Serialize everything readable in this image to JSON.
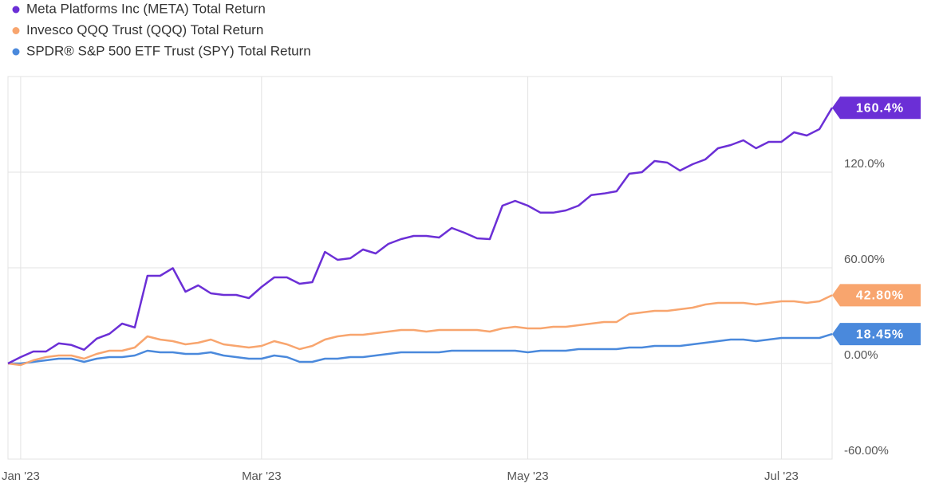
{
  "chart_data": {
    "type": "line",
    "categories": [
      null,
      "Jan '23",
      null,
      null,
      null,
      null,
      null,
      null,
      null,
      null,
      null,
      null,
      null,
      null,
      null,
      null,
      null,
      null,
      null,
      null,
      "Mar '23",
      null,
      null,
      null,
      null,
      null,
      null,
      null,
      null,
      null,
      null,
      null,
      null,
      null,
      null,
      null,
      null,
      null,
      null,
      null,
      null,
      "May '23",
      null,
      null,
      null,
      null,
      null,
      null,
      null,
      null,
      null,
      null,
      null,
      null,
      null,
      null,
      null,
      null,
      null,
      null,
      null,
      "Jul '23",
      null,
      null,
      null,
      null
    ],
    "series": [
      {
        "name": "Meta Platforms Inc (META) Total Return",
        "color": "#6b2fd6",
        "values": [
          0,
          4,
          7.5,
          7.5,
          12.6,
          11.6,
          8.6,
          15.6,
          18.6,
          25,
          22.6,
          55,
          55,
          59.8,
          45,
          49,
          44,
          43,
          43,
          41,
          48,
          54,
          54,
          50,
          51,
          70,
          65,
          66,
          71.5,
          69,
          75,
          78,
          80,
          80,
          79,
          85,
          82,
          78.5,
          78,
          99,
          102,
          99,
          94.6,
          94.6,
          96,
          99,
          105.6,
          106.6,
          108,
          119,
          120,
          127,
          126,
          121,
          125,
          128,
          135,
          137,
          140,
          135,
          139,
          139,
          145,
          143,
          147,
          160.4
        ],
        "value_labels": [
          null,
          null,
          null,
          null,
          null,
          null,
          null,
          null,
          null,
          null,
          null,
          null,
          null,
          null,
          null,
          null,
          null,
          null,
          null,
          null,
          null,
          null,
          null,
          null,
          null,
          null,
          null,
          null,
          null,
          null,
          null,
          null,
          null,
          null,
          null,
          null,
          null,
          null,
          null,
          null,
          null,
          null,
          null,
          null,
          null,
          null,
          null,
          null,
          null,
          null,
          null,
          null,
          null,
          null,
          null,
          null,
          null,
          null,
          null,
          null,
          null,
          null,
          null,
          null,
          null,
          "160.4%"
        ]
      },
      {
        "name": "Invesco QQQ Trust (QQQ) Total Return",
        "color": "#f8a56e",
        "values": [
          0,
          -1,
          2,
          4,
          5,
          5,
          3,
          6,
          8,
          8,
          10,
          17,
          15,
          14,
          12,
          13,
          15,
          12,
          11,
          10,
          11,
          14,
          12,
          9,
          11,
          15,
          17,
          18,
          18,
          19,
          20,
          21,
          21,
          20,
          21,
          21,
          21,
          21,
          20,
          22,
          23,
          22,
          22,
          23,
          23,
          24,
          25,
          26,
          26,
          31,
          32,
          33,
          33,
          34,
          35,
          37,
          38,
          38,
          38,
          37,
          38,
          39,
          39,
          38,
          39,
          42.8
        ],
        "value_labels": [
          null,
          null,
          null,
          null,
          null,
          null,
          null,
          null,
          null,
          null,
          null,
          null,
          null,
          null,
          null,
          null,
          null,
          null,
          null,
          null,
          null,
          null,
          null,
          null,
          null,
          null,
          null,
          null,
          null,
          null,
          null,
          null,
          null,
          null,
          null,
          null,
          null,
          null,
          null,
          null,
          null,
          null,
          null,
          null,
          null,
          null,
          null,
          null,
          null,
          null,
          null,
          null,
          null,
          null,
          null,
          null,
          null,
          null,
          null,
          null,
          null,
          null,
          null,
          null,
          null,
          "42.80%"
        ]
      },
      {
        "name": "SPDR® S&P 500 ETF Trust (SPY) Total Return",
        "color": "#4a89dc",
        "values": [
          0,
          0,
          1,
          2,
          3,
          3,
          1,
          3,
          4,
          4,
          5,
          8,
          7,
          7,
          6,
          6,
          7,
          5,
          4,
          3,
          3,
          5,
          4,
          1,
          1,
          3,
          3,
          4,
          4,
          5,
          6,
          7,
          7,
          7,
          7,
          8,
          8,
          8,
          8,
          8,
          8,
          7,
          8,
          8,
          8,
          9,
          9,
          9,
          9,
          10,
          10,
          11,
          11,
          11,
          12,
          13,
          14,
          15,
          15,
          14,
          15,
          16,
          16,
          16,
          16,
          18.45
        ],
        "value_labels": [
          null,
          null,
          null,
          null,
          null,
          null,
          null,
          null,
          null,
          null,
          null,
          null,
          null,
          null,
          null,
          null,
          null,
          null,
          null,
          null,
          null,
          null,
          null,
          null,
          null,
          null,
          null,
          null,
          null,
          null,
          null,
          null,
          null,
          null,
          null,
          null,
          null,
          null,
          null,
          null,
          null,
          null,
          null,
          null,
          null,
          null,
          null,
          null,
          null,
          null,
          null,
          null,
          null,
          null,
          null,
          null,
          null,
          null,
          null,
          null,
          null,
          null,
          null,
          null,
          null,
          "18.45%"
        ]
      }
    ],
    "ylim": [
      -60,
      180
    ],
    "yticks": [
      {
        "value": -60,
        "label": "-60.00%"
      },
      {
        "value": 0,
        "label": "0.00%"
      },
      {
        "value": 60,
        "label": "60.00%"
      },
      {
        "value": 120,
        "label": "120.0%"
      }
    ],
    "grid": true
  }
}
